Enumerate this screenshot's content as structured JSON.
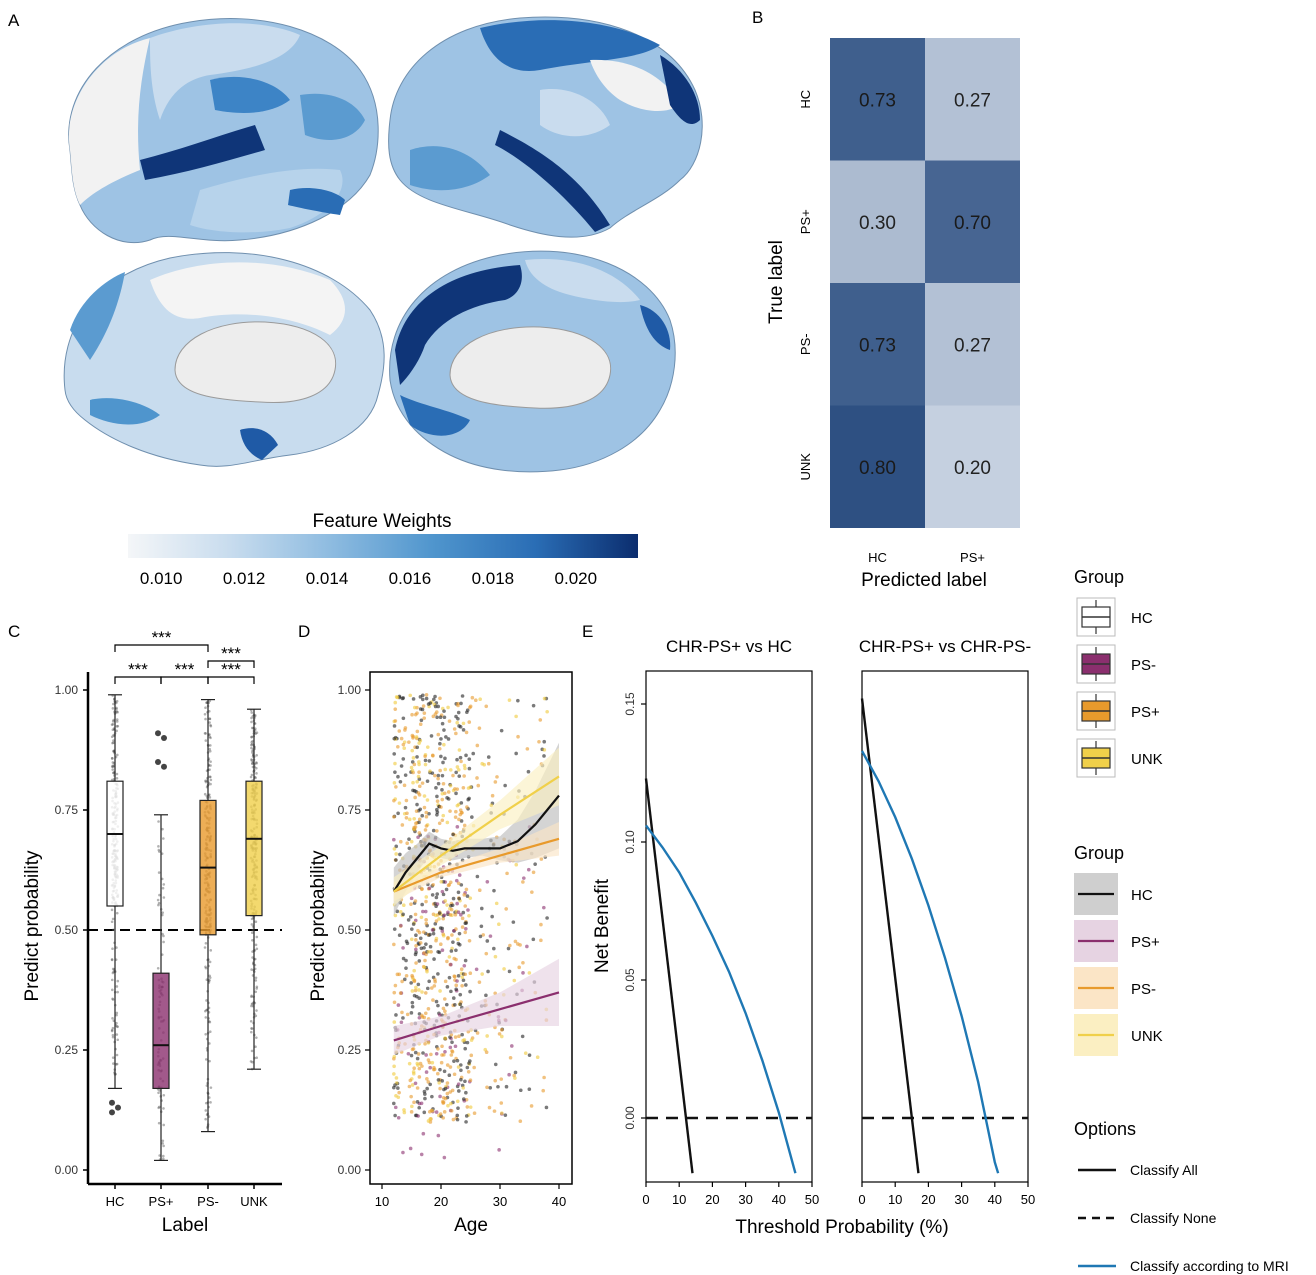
{
  "panels": {
    "A": {
      "letter": "A",
      "colorbar_title": "Feature Weights",
      "colorbar_ticks": [
        "0.010",
        "0.012",
        "0.014",
        "0.016",
        "0.018",
        "0.020"
      ],
      "colorbar_colors": [
        "#f4f6f8",
        "#c8dcee",
        "#8dbbe0",
        "#4f95cd",
        "#2a6db5",
        "#0b2d6e"
      ]
    },
    "B": {
      "letter": "B"
    },
    "C": {
      "letter": "C"
    },
    "D": {
      "letter": "D"
    },
    "E": {
      "letter": "E"
    }
  },
  "legends": {
    "box": {
      "title": "Group",
      "items": [
        {
          "label": "HC",
          "fill": "#ffffff",
          "line": "#333333"
        },
        {
          "label": "PS-",
          "fill": "#8b2f6e",
          "line": "#333333"
        },
        {
          "label": "PS+",
          "fill": "#e89a2c",
          "line": "#333333"
        },
        {
          "label": "UNK",
          "fill": "#f0d04a",
          "line": "#333333"
        }
      ]
    },
    "line": {
      "title": "Group",
      "items": [
        {
          "label": "HC",
          "fill": "#cfcfcf",
          "line": "#111111"
        },
        {
          "label": "PS+",
          "fill": "#e6d3e2",
          "line": "#8b2f6e"
        },
        {
          "label": "PS-",
          "fill": "#fbe5c6",
          "line": "#e89a2c"
        },
        {
          "label": "UNK",
          "fill": "#fbefc2",
          "line": "#f0d04a"
        }
      ]
    },
    "options": {
      "title": "Options",
      "items": [
        {
          "label": "Classify All",
          "color": "#111111",
          "dash": ""
        },
        {
          "label": "Classify None",
          "color": "#111111",
          "dash": "12,8"
        },
        {
          "label": "Classify according to MRI",
          "color": "#1f78b4",
          "dash": ""
        }
      ]
    }
  },
  "chart_data": [
    {
      "panel": "B",
      "type": "heatmap",
      "rows": [
        "HC",
        "PS+",
        "PS-",
        "UNK"
      ],
      "cols": [
        "HC",
        "PS+"
      ],
      "values": [
        [
          0.73,
          0.27
        ],
        [
          0.3,
          0.7
        ],
        [
          0.73,
          0.27
        ],
        [
          0.8,
          0.2
        ]
      ],
      "value_labels": [
        [
          "0.73",
          "0.27"
        ],
        [
          "0.30",
          "0.70"
        ],
        [
          "0.73",
          "0.27"
        ],
        [
          "0.80",
          "0.20"
        ]
      ],
      "xlabel": "Predicted label",
      "ylabel": "True label"
    },
    {
      "panel": "C",
      "type": "box",
      "categories": [
        "HC",
        "PS+",
        "PS-",
        "UNK"
      ],
      "colors": [
        "#ffffff",
        "#8b2f6e",
        "#e89a2c",
        "#f0d04a"
      ],
      "boxes": [
        {
          "q1": 0.55,
          "median": 0.7,
          "q3": 0.81,
          "whislo": 0.17,
          "whishi": 0.99,
          "outliers": [
            0.14,
            0.13,
            0.12
          ]
        },
        {
          "q1": 0.17,
          "median": 0.26,
          "q3": 0.41,
          "whislo": 0.02,
          "whishi": 0.74,
          "outliers": [
            0.91,
            0.9,
            0.85,
            0.84
          ]
        },
        {
          "q1": 0.49,
          "median": 0.63,
          "q3": 0.77,
          "whislo": 0.08,
          "whishi": 0.98,
          "outliers": []
        },
        {
          "q1": 0.53,
          "median": 0.69,
          "q3": 0.81,
          "whislo": 0.21,
          "whishi": 0.96,
          "outliers": []
        }
      ],
      "ylim": [
        0,
        1
      ],
      "yticks": [
        "0.00",
        "0.25",
        "0.50",
        "0.75",
        "1.00"
      ],
      "hline": 0.5,
      "significance": [
        {
          "from": 0,
          "to": 2,
          "label": "***"
        },
        {
          "from": 2,
          "to": 3,
          "label": "***"
        },
        {
          "from": 0,
          "to": 1,
          "label": "***"
        },
        {
          "from": 1,
          "to": 2,
          "label": "***"
        },
        {
          "from": 2,
          "to": 3,
          "label": "***"
        }
      ],
      "xlabel": "Label",
      "ylabel": "Predict probability"
    },
    {
      "panel": "D",
      "type": "scatter",
      "xlim": [
        9,
        41
      ],
      "xticks": [
        10,
        20,
        30,
        40
      ],
      "ylim": [
        -0.02,
        1.03
      ],
      "yticks": [
        "0.00",
        "0.25",
        "0.50",
        "0.75",
        "1.00"
      ],
      "fits": [
        {
          "name": "HC",
          "color": "#111111",
          "band": "#bdbdbd",
          "x": [
            12,
            14,
            16,
            18,
            20,
            22,
            24,
            27,
            30,
            33,
            36,
            38,
            40
          ],
          "y": [
            0.58,
            0.62,
            0.65,
            0.68,
            0.67,
            0.665,
            0.67,
            0.67,
            0.67,
            0.685,
            0.72,
            0.75,
            0.78
          ],
          "lo": [
            0.53,
            0.58,
            0.62,
            0.655,
            0.65,
            0.645,
            0.65,
            0.655,
            0.645,
            0.64,
            0.65,
            0.66,
            0.67
          ],
          "hi": [
            0.63,
            0.66,
            0.68,
            0.705,
            0.69,
            0.685,
            0.69,
            0.69,
            0.695,
            0.73,
            0.79,
            0.84,
            0.89
          ]
        },
        {
          "name": "PS+",
          "color": "#8b2f6e",
          "band": "#e6d3e2",
          "x": [
            12,
            20,
            30,
            40
          ],
          "y": [
            0.27,
            0.3,
            0.335,
            0.37
          ],
          "lo": [
            0.24,
            0.28,
            0.3,
            0.3
          ],
          "hi": [
            0.3,
            0.32,
            0.37,
            0.44
          ]
        },
        {
          "name": "PS-",
          "color": "#e89a2c",
          "band": "#fbe5c6",
          "x": [
            12,
            20,
            30,
            40
          ],
          "y": [
            0.58,
            0.62,
            0.655,
            0.69
          ],
          "lo": [
            0.56,
            0.61,
            0.64,
            0.655
          ],
          "hi": [
            0.6,
            0.63,
            0.67,
            0.725
          ]
        },
        {
          "name": "UNK",
          "color": "#f0d04a",
          "band": "#fbefc2",
          "x": [
            12,
            20,
            30,
            40
          ],
          "y": [
            0.58,
            0.655,
            0.74,
            0.82
          ],
          "lo": [
            0.55,
            0.635,
            0.71,
            0.76
          ],
          "hi": [
            0.61,
            0.675,
            0.77,
            0.88
          ]
        }
      ],
      "xlabel": "Age",
      "ylabel": "Predict probability"
    },
    {
      "panel": "E",
      "type": "line",
      "facets": [
        "CHR-PS+ vs HC",
        "CHR-PS+ vs CHR-PS-"
      ],
      "xlim": [
        0,
        50
      ],
      "xticks": [
        0,
        10,
        20,
        30,
        40,
        50
      ],
      "ylim": [
        -0.02,
        0.16
      ],
      "yticks": [
        "0.00",
        "0.05",
        "0.10",
        "0.15"
      ],
      "series": [
        {
          "facet": 0,
          "name": "Classify All",
          "x": [
            0,
            14
          ],
          "y": [
            0.123,
            -0.02
          ]
        },
        {
          "facet": 0,
          "name": "Classify None",
          "x": [
            0,
            50
          ],
          "y": [
            0,
            0
          ]
        },
        {
          "facet": 0,
          "name": "Classify according to MRI",
          "x": [
            0,
            5,
            10,
            15,
            20,
            25,
            30,
            35,
            40,
            45
          ],
          "y": [
            0.106,
            0.098,
            0.089,
            0.078,
            0.066,
            0.053,
            0.038,
            0.021,
            0.002,
            -0.02
          ]
        },
        {
          "facet": 1,
          "name": "Classify All",
          "x": [
            0,
            17
          ],
          "y": [
            0.152,
            -0.02
          ]
        },
        {
          "facet": 1,
          "name": "Classify None",
          "x": [
            0,
            50
          ],
          "y": [
            0,
            0
          ]
        },
        {
          "facet": 1,
          "name": "Classify according to MRI",
          "x": [
            0,
            5,
            10,
            15,
            20,
            25,
            30,
            35,
            40,
            41
          ],
          "y": [
            0.133,
            0.122,
            0.109,
            0.094,
            0.077,
            0.058,
            0.037,
            0.013,
            -0.016,
            -0.02
          ]
        }
      ],
      "xlabel": "Threshold Probability (%)",
      "ylabel": "Net Benefit"
    }
  ]
}
